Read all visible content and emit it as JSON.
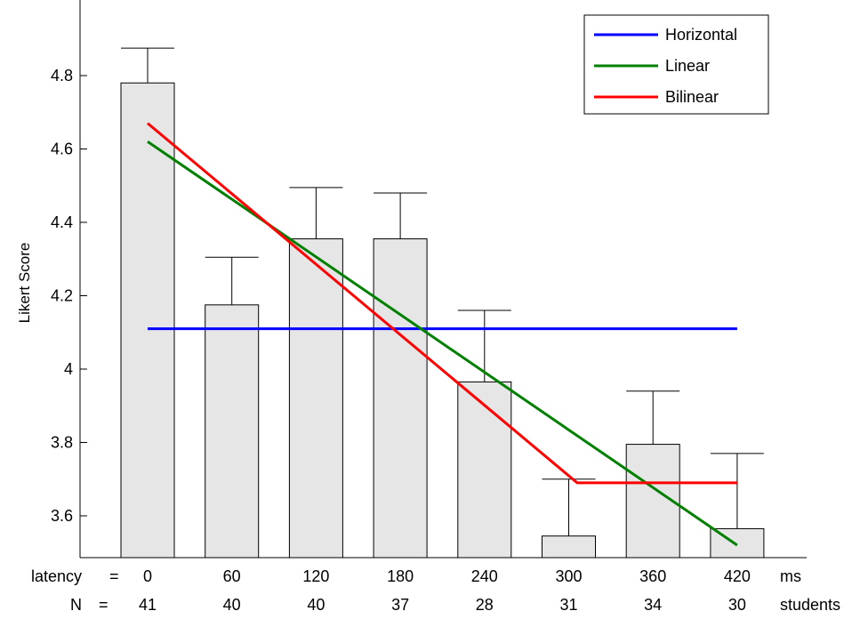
{
  "chart_data": {
    "type": "bar",
    "title": "",
    "xlabel": "",
    "ylabel": "Likert Score",
    "ylim": [
      3.5,
      5.0
    ],
    "yticks": [
      "3.6",
      "3.8",
      "4",
      "4.2",
      "4.4",
      "4.6",
      "4.8"
    ],
    "grid": false,
    "legend_position": "top-right",
    "bar_color": "#e6e6e6",
    "bar_edge_color": "#000000",
    "categories": [
      "0",
      "60",
      "120",
      "180",
      "240",
      "300",
      "360",
      "420"
    ],
    "values": [
      4.78,
      4.175,
      4.355,
      4.355,
      3.965,
      3.545,
      3.795,
      3.565
    ],
    "error_upper": [
      4.875,
      4.305,
      4.495,
      4.48,
      4.16,
      3.7,
      3.94,
      3.77
    ],
    "latency_row": {
      "label": "latency",
      "eq": "=",
      "unit": "ms"
    },
    "n_row": {
      "label": "N",
      "eq": "=",
      "values": [
        "41",
        "40",
        "40",
        "37",
        "28",
        "31",
        "34",
        "30"
      ],
      "unit": "students"
    },
    "series": [
      {
        "name": "Horizontal",
        "color": "#0000ff",
        "x": [
          0,
          420
        ],
        "y": [
          4.11,
          4.11
        ]
      },
      {
        "name": "Linear",
        "color": "#008000",
        "x": [
          0,
          420
        ],
        "y": [
          4.62,
          3.52
        ]
      },
      {
        "name": "Bilinear",
        "color": "#ff0000",
        "x": [
          0,
          306,
          420
        ],
        "y": [
          4.67,
          3.69,
          3.69
        ]
      }
    ]
  }
}
